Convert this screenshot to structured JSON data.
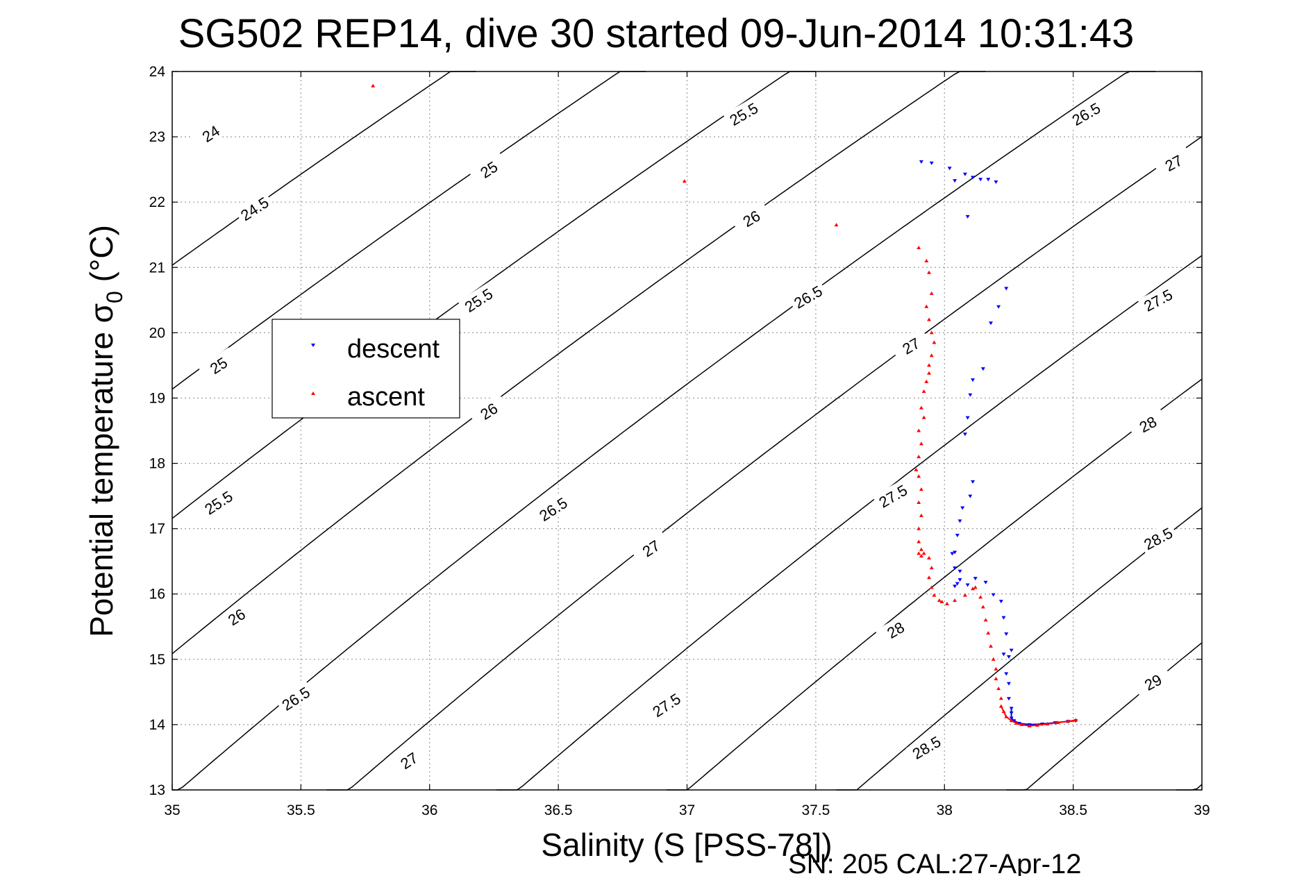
{
  "chart_data": {
    "type": "scatter",
    "title": "SG502 REP14, dive 30 started 09-Jun-2014 10:31:43",
    "xlabel": "Salinity (S [PSS-78])",
    "ylabel_main": "Potential temperature σ",
    "ylabel_sub": "0",
    "ylabel_unit": " (°C)",
    "footer": "SN: 205  CAL:27-Apr-12",
    "xlim": [
      35,
      39
    ],
    "ylim": [
      13,
      24
    ],
    "xticks": [
      "35",
      "35.5",
      "36",
      "36.5",
      "37",
      "37.5",
      "38",
      "38.5",
      "39"
    ],
    "yticks": [
      "13",
      "14",
      "15",
      "16",
      "17",
      "18",
      "19",
      "20",
      "21",
      "22",
      "23",
      "24"
    ],
    "grid": true,
    "legend_position": "left-middle",
    "contour_levels": [
      24,
      24.5,
      25,
      25.5,
      26,
      26.5,
      27,
      27.5,
      28,
      28.5,
      29
    ],
    "contour_labels": [
      {
        "text": "24",
        "s": 35.15,
        "t": 23.05,
        "angle": -33
      },
      {
        "text": "24.5",
        "s": 35.32,
        "t": 21.9,
        "angle": -33
      },
      {
        "text": "25",
        "s": 35.18,
        "t": 19.5,
        "angle": -33
      },
      {
        "text": "25.5",
        "s": 35.18,
        "t": 17.4,
        "angle": -33
      },
      {
        "text": "26",
        "s": 35.25,
        "t": 15.65,
        "angle": -33
      },
      {
        "text": "26.5",
        "s": 35.48,
        "t": 14.4,
        "angle": -33
      },
      {
        "text": "27",
        "s": 35.92,
        "t": 13.45,
        "angle": -33
      },
      {
        "text": "25",
        "s": 36.23,
        "t": 22.5,
        "angle": -33
      },
      {
        "text": "25.5",
        "s": 36.19,
        "t": 20.5,
        "angle": -33
      },
      {
        "text": "26",
        "s": 36.23,
        "t": 18.8,
        "angle": -33
      },
      {
        "text": "26.5",
        "s": 36.48,
        "t": 17.3,
        "angle": -33
      },
      {
        "text": "27",
        "s": 36.86,
        "t": 16.7,
        "angle": -33
      },
      {
        "text": "27.5",
        "s": 36.92,
        "t": 14.3,
        "angle": -33
      },
      {
        "text": "25.5",
        "s": 37.22,
        "t": 23.35,
        "angle": -30
      },
      {
        "text": "26",
        "s": 37.25,
        "t": 21.75,
        "angle": -30
      },
      {
        "text": "26.5",
        "s": 37.47,
        "t": 20.55,
        "angle": -30
      },
      {
        "text": "27",
        "s": 37.87,
        "t": 19.8,
        "angle": -30
      },
      {
        "text": "27.5",
        "s": 37.8,
        "t": 17.5,
        "angle": -30
      },
      {
        "text": "28",
        "s": 37.81,
        "t": 15.45,
        "angle": -30
      },
      {
        "text": "28.5",
        "s": 37.93,
        "t": 13.65,
        "angle": -30
      },
      {
        "text": "26.5",
        "s": 38.55,
        "t": 23.35,
        "angle": -30
      },
      {
        "text": "27",
        "s": 38.89,
        "t": 22.6,
        "angle": -28
      },
      {
        "text": "27.5",
        "s": 38.83,
        "t": 20.5,
        "angle": -28
      },
      {
        "text": "28",
        "s": 38.79,
        "t": 18.6,
        "angle": -28
      },
      {
        "text": "28.5",
        "s": 38.83,
        "t": 16.85,
        "angle": -28
      },
      {
        "text": "29",
        "s": 38.81,
        "t": 14.65,
        "angle": -28
      }
    ],
    "series": [
      {
        "name": "descent",
        "color": "#0000ff",
        "marker": "triangle-down",
        "x": [
          37.91,
          37.95,
          38.02,
          38.04,
          38.08,
          38.11,
          38.14,
          38.17,
          38.2,
          38.09,
          38.24,
          38.21,
          38.18,
          38.15,
          38.11,
          38.1,
          38.09,
          38.08,
          38.11,
          38.1,
          38.07,
          38.06,
          38.05,
          38.04,
          38.03,
          38.04,
          38.06,
          38.05,
          38.04,
          38.06,
          38.09,
          38.12,
          38.16,
          38.19,
          38.22,
          38.23,
          38.24,
          38.26,
          38.25,
          38.23,
          38.24,
          38.25,
          38.25,
          38.26,
          38.26,
          38.26,
          38.27,
          38.29,
          38.33,
          38.38,
          38.43,
          38.48,
          38.51
        ],
        "y": [
          22.62,
          22.6,
          22.52,
          22.33,
          22.43,
          22.38,
          22.35,
          22.35,
          22.31,
          21.78,
          20.68,
          20.4,
          20.15,
          19.45,
          19.28,
          19.05,
          18.7,
          18.45,
          17.72,
          17.5,
          17.32,
          17.12,
          16.9,
          16.64,
          16.62,
          16.4,
          16.35,
          16.16,
          16.12,
          16.22,
          16.14,
          16.24,
          16.18,
          15.99,
          15.89,
          15.64,
          15.39,
          15.14,
          15.04,
          15.08,
          14.78,
          14.63,
          14.4,
          14.25,
          14.18,
          14.1,
          14.06,
          14.02,
          14.0,
          14.01,
          14.03,
          14.05,
          14.06
        ]
      },
      {
        "name": "ascent",
        "color": "#ff0000",
        "marker": "triangle-up",
        "x": [
          35.78,
          36.99,
          37.58,
          37.9,
          37.93,
          37.94,
          37.95,
          37.93,
          37.94,
          37.95,
          37.96,
          37.95,
          37.94,
          37.94,
          37.93,
          37.92,
          37.91,
          37.92,
          37.9,
          37.91,
          37.9,
          37.89,
          37.9,
          37.91,
          37.9,
          37.91,
          37.9,
          37.9,
          37.91,
          37.9,
          37.91,
          37.92,
          37.94,
          37.95,
          37.94,
          37.95,
          37.96,
          37.98,
          37.99,
          38.01,
          38.04,
          38.08,
          38.11,
          38.12,
          38.14,
          38.15,
          38.16,
          38.17,
          38.18,
          38.19,
          38.2,
          38.2,
          38.21,
          38.22,
          38.22,
          38.23,
          38.24,
          38.26,
          38.28,
          38.3,
          38.33,
          38.36,
          38.4,
          38.44,
          38.48,
          38.51
        ],
        "y": [
          23.78,
          22.32,
          21.65,
          21.3,
          21.1,
          20.92,
          20.6,
          20.4,
          20.2,
          20.0,
          19.85,
          19.65,
          19.5,
          19.38,
          19.25,
          19.1,
          18.85,
          18.7,
          18.5,
          18.3,
          18.1,
          17.9,
          17.8,
          17.6,
          17.4,
          17.2,
          17.0,
          16.8,
          16.68,
          16.62,
          16.58,
          16.62,
          16.55,
          16.4,
          16.25,
          16.1,
          15.98,
          15.9,
          15.88,
          15.85,
          15.9,
          15.98,
          16.08,
          16.1,
          15.95,
          15.8,
          15.6,
          15.4,
          15.2,
          15.0,
          14.85,
          14.7,
          14.55,
          14.4,
          14.28,
          14.2,
          14.12,
          14.06,
          14.02,
          14.0,
          13.98,
          13.99,
          14.01,
          14.03,
          14.05,
          14.07
        ]
      }
    ]
  }
}
